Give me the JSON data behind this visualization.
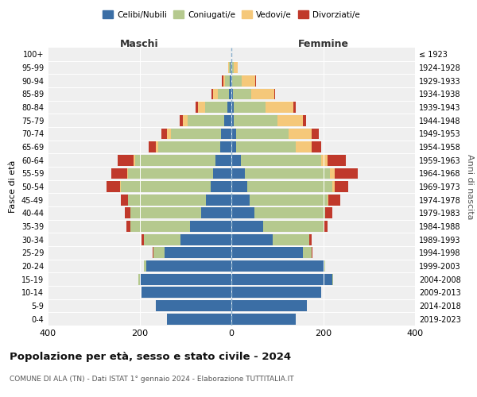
{
  "age_groups": [
    "0-4",
    "5-9",
    "10-14",
    "15-19",
    "20-24",
    "25-29",
    "30-34",
    "35-39",
    "40-44",
    "45-49",
    "50-54",
    "55-59",
    "60-64",
    "65-69",
    "70-74",
    "75-79",
    "80-84",
    "85-89",
    "90-94",
    "95-99",
    "100+"
  ],
  "birth_years": [
    "2019-2023",
    "2014-2018",
    "2009-2013",
    "2004-2008",
    "1999-2003",
    "1994-1998",
    "1989-1993",
    "1984-1988",
    "1979-1983",
    "1974-1978",
    "1969-1973",
    "1964-1968",
    "1959-1963",
    "1954-1958",
    "1949-1953",
    "1944-1948",
    "1939-1943",
    "1934-1938",
    "1929-1933",
    "1924-1928",
    "≤ 1923"
  ],
  "male": {
    "celibi": [
      140,
      165,
      195,
      200,
      185,
      145,
      110,
      90,
      65,
      55,
      45,
      40,
      35,
      25,
      22,
      15,
      8,
      5,
      3,
      2,
      0
    ],
    "coniugati": [
      0,
      0,
      0,
      2,
      5,
      25,
      80,
      130,
      155,
      170,
      195,
      185,
      175,
      135,
      110,
      80,
      50,
      25,
      10,
      3,
      0
    ],
    "vedovi": [
      0,
      0,
      0,
      0,
      0,
      0,
      0,
      0,
      0,
      0,
      2,
      2,
      3,
      5,
      8,
      10,
      15,
      10,
      5,
      2,
      0
    ],
    "divorziati": [
      0,
      0,
      0,
      0,
      0,
      2,
      5,
      8,
      12,
      15,
      30,
      35,
      35,
      15,
      12,
      8,
      5,
      3,
      2,
      0,
      0
    ]
  },
  "female": {
    "nubili": [
      140,
      165,
      195,
      220,
      200,
      155,
      90,
      70,
      50,
      40,
      35,
      30,
      20,
      10,
      10,
      5,
      5,
      3,
      2,
      0,
      0
    ],
    "coniugate": [
      0,
      0,
      0,
      2,
      5,
      20,
      80,
      130,
      155,
      170,
      185,
      185,
      175,
      130,
      115,
      95,
      70,
      40,
      20,
      5,
      0
    ],
    "vedove": [
      0,
      0,
      0,
      0,
      0,
      0,
      0,
      0,
      0,
      2,
      5,
      10,
      15,
      35,
      50,
      55,
      60,
      50,
      30,
      8,
      2
    ],
    "divorziate": [
      0,
      0,
      0,
      0,
      0,
      2,
      5,
      10,
      15,
      25,
      30,
      50,
      40,
      20,
      15,
      8,
      5,
      3,
      2,
      0,
      0
    ]
  },
  "colors": {
    "celibi": "#3b6ea5",
    "coniugati": "#b5c98e",
    "vedovi": "#f5c87a",
    "divorziati": "#c0392b"
  },
  "xlim": 400,
  "title": "Popolazione per età, sesso e stato civile - 2024",
  "subtitle": "COMUNE DI ALA (TN) - Dati ISTAT 1° gennaio 2024 - Elaborazione TUTTITALIA.IT",
  "ylabel_left": "Fasce di età",
  "ylabel_right": "Anni di nascita",
  "bg_color": "#ffffff",
  "plot_bg": "#efefef"
}
